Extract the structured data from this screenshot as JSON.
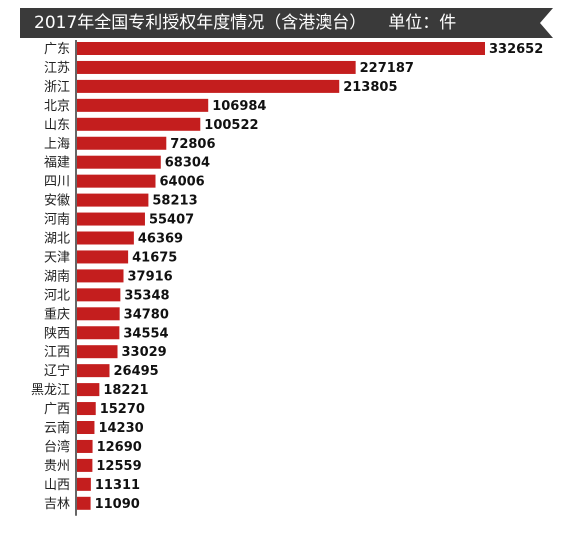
{
  "title": "2017年全国专利授权年度情况（含港澳台）",
  "unit": "单位：件",
  "colors": {
    "bar": "#c41e1e",
    "banner": "#3a3a3a",
    "axis": "#333333"
  },
  "chart_data": {
    "type": "bar",
    "orientation": "horizontal",
    "title": "2017年全国专利授权年度情况（含港澳台）",
    "unit": "单位：件",
    "categories": [
      "广东",
      "江苏",
      "浙江",
      "北京",
      "山东",
      "上海",
      "福建",
      "四川",
      "安徽",
      "河南",
      "湖北",
      "天津",
      "湖南",
      "河北",
      "重庆",
      "陕西",
      "江西",
      "辽宁",
      "黑龙江",
      "广西",
      "云南",
      "台湾",
      "贵州",
      "山西",
      "吉林"
    ],
    "values": [
      332652,
      227187,
      213805,
      106984,
      100522,
      72806,
      68304,
      64006,
      58213,
      55407,
      46369,
      41675,
      37916,
      35348,
      34780,
      34554,
      33029,
      26495,
      18221,
      15270,
      14230,
      12690,
      12559,
      11311,
      11090
    ],
    "xlim": [
      0,
      332652
    ],
    "grid": false,
    "legend": "none"
  }
}
